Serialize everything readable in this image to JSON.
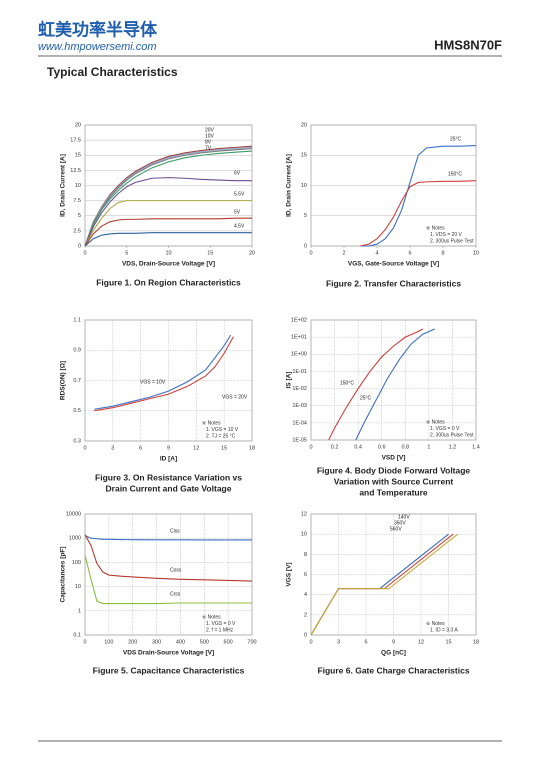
{
  "header": {
    "company": "虹美功率半导体",
    "website": "www.hmpowersemi.com",
    "part_number": "HMS8N70F"
  },
  "section_title": "Typical Characteristics",
  "chart_data": [
    {
      "type": "line",
      "title": [
        "Figure 1. On Region Characteristics"
      ],
      "xlabel": "VDS, Drain-Source Voltage  [V]",
      "ylabel": "ID, Drain Current  [A]",
      "xlim": [
        0,
        20
      ],
      "xticks": [
        0,
        5,
        10,
        15,
        20
      ],
      "ylim": [
        0,
        20
      ],
      "yticks": [
        0,
        2.5,
        5,
        7.5,
        10,
        12.5,
        15,
        17.5,
        20
      ],
      "grid": "y",
      "log_y": false,
      "series": [
        {
          "name": "20V",
          "color": "#a04040",
          "x": [
            0,
            1,
            2,
            3,
            4,
            5,
            6,
            8,
            10,
            12,
            14,
            16,
            18,
            20
          ],
          "values": [
            0,
            4.0,
            6.5,
            8.5,
            10,
            11.3,
            12.3,
            13.8,
            14.8,
            15.4,
            15.8,
            16.1,
            16.3,
            16.5
          ]
        },
        {
          "name": "10V",
          "color": "#8fa7cc",
          "x": [
            0,
            1,
            2,
            3,
            4,
            5,
            6,
            8,
            10,
            12,
            14,
            16,
            18,
            20
          ],
          "values": [
            0,
            3.9,
            6.4,
            8.3,
            9.8,
            11.1,
            12.1,
            13.6,
            14.6,
            15.2,
            15.6,
            15.9,
            16.1,
            16.3
          ]
        },
        {
          "name": "8V",
          "color": "#7a7a7a",
          "x": [
            0,
            1,
            2,
            3,
            4,
            5,
            6,
            8,
            10,
            12,
            14,
            16,
            18,
            20
          ],
          "values": [
            0,
            3.8,
            6.2,
            8.1,
            9.6,
            10.9,
            11.9,
            13.4,
            14.4,
            15.0,
            15.4,
            15.7,
            15.9,
            16.1
          ]
        },
        {
          "name": "7V",
          "color": "#3a9a6a",
          "x": [
            0,
            1,
            2,
            3,
            4,
            5,
            6,
            8,
            10,
            12,
            14,
            16,
            18,
            20
          ],
          "values": [
            0,
            3.6,
            6.0,
            7.8,
            9.2,
            10.4,
            11.4,
            12.9,
            13.9,
            14.6,
            15.0,
            15.3,
            15.5,
            15.7
          ]
        },
        {
          "name": "6V",
          "color": "#6a4c93",
          "x": [
            0,
            1,
            2,
            3,
            4,
            5,
            6,
            8,
            10,
            12,
            14,
            16,
            18,
            20
          ],
          "values": [
            0,
            3.2,
            5.5,
            7.3,
            8.7,
            9.8,
            10.5,
            11.2,
            11.3,
            11.2,
            11.0,
            10.9,
            10.8,
            10.8
          ]
        },
        {
          "name": "5.5V",
          "color": "#a8a842",
          "x": [
            0,
            1,
            2,
            3,
            4,
            5,
            6,
            8,
            10,
            12,
            14,
            16,
            18,
            20
          ],
          "values": [
            0,
            2.6,
            4.6,
            6.2,
            7.2,
            7.5,
            7.5,
            7.5,
            7.5,
            7.5,
            7.5,
            7.5,
            7.5,
            7.5
          ]
        },
        {
          "name": "5V",
          "color": "#b03a2e",
          "x": [
            0,
            1,
            2,
            3,
            4,
            5,
            6,
            8,
            10,
            12,
            14,
            16,
            18,
            20
          ],
          "values": [
            0,
            2.0,
            3.3,
            4.0,
            4.3,
            4.4,
            4.4,
            4.5,
            4.5,
            4.5,
            4.5,
            4.5,
            4.6,
            4.6
          ]
        },
        {
          "name": "4.5V",
          "color": "#2f5f9e",
          "x": [
            0,
            1,
            2,
            3,
            4,
            5,
            6,
            8,
            10,
            12,
            14,
            16,
            18,
            20
          ],
          "values": [
            0,
            1.2,
            1.8,
            2.0,
            2.1,
            2.1,
            2.1,
            2.2,
            2.2,
            2.2,
            2.2,
            2.2,
            2.2,
            2.2
          ]
        }
      ],
      "notes": []
    },
    {
      "type": "line",
      "title": [
        "Figure 2. Transfer Characteristics"
      ],
      "xlabel": "VGS, Gate-Source Voltage [V]",
      "ylabel": "ID, Drain Current [A]",
      "xlim": [
        0,
        10
      ],
      "xticks": [
        0,
        2,
        4,
        6,
        8,
        10
      ],
      "ylim": [
        0,
        20
      ],
      "yticks": [
        0,
        5,
        10,
        15,
        20
      ],
      "grid": "y",
      "log_y": false,
      "series": [
        {
          "name": "25°C",
          "color": "#3a6fc4",
          "x": [
            3,
            3.5,
            4,
            4.5,
            5,
            5.5,
            6,
            6.5,
            7,
            8,
            9,
            10
          ],
          "values": [
            0,
            0,
            0.3,
            1.2,
            3,
            6,
            10.5,
            15,
            16.2,
            16.5,
            16.5,
            16.6
          ]
        },
        {
          "name": "150°C",
          "color": "#d0403a",
          "x": [
            3,
            3.5,
            4,
            4.5,
            5,
            5.5,
            6,
            6.5,
            7,
            8,
            9,
            10
          ],
          "values": [
            0,
            0.3,
            1.2,
            2.7,
            4.8,
            7.5,
            9.8,
            10.5,
            10.6,
            10.7,
            10.7,
            10.8
          ]
        }
      ],
      "notes": [
        "※ Notes",
        "1. VDS = 20 V",
        "2. 300us Pulse Test"
      ]
    },
    {
      "type": "line",
      "title": [
        "Figure 3. On Resistance Variation vs",
        "Drain Current and Gate Voltage"
      ],
      "xlabel": "ID  [A]",
      "ylabel": "RDS(ON) [Ω]",
      "xlim": [
        0,
        18
      ],
      "xticks": [
        0,
        3,
        6,
        9,
        12,
        15,
        18
      ],
      "ylim": [
        0.3,
        1.1
      ],
      "yticks": [
        0.3,
        0.5,
        0.7,
        0.9,
        1.1
      ],
      "grid": "both",
      "log_y": false,
      "series": [
        {
          "name": "VGS = 10V",
          "color": "#3a6fc4",
          "x": [
            1,
            3,
            5,
            7,
            9,
            11,
            13,
            14,
            15,
            15.7
          ],
          "values": [
            0.51,
            0.53,
            0.56,
            0.59,
            0.63,
            0.69,
            0.77,
            0.85,
            0.93,
            1.0
          ]
        },
        {
          "name": "VGS = 20V",
          "color": "#d0403a",
          "x": [
            1,
            3,
            5,
            7,
            9,
            11,
            13,
            14,
            15,
            16
          ],
          "values": [
            0.5,
            0.52,
            0.55,
            0.58,
            0.61,
            0.66,
            0.73,
            0.79,
            0.88,
            0.99
          ]
        }
      ],
      "notes": [
        "※ Notes",
        "1. VGS = 10 V",
        "2. TJ = 25 °C"
      ]
    },
    {
      "type": "line",
      "title": [
        "Figure 4. Body Diode Forward Voltage",
        "Variation with Source Current",
        "and Temperature"
      ],
      "xlabel": "VSD [V]",
      "ylabel": "IS [A]",
      "xlim": [
        0,
        1.4
      ],
      "xticks": [
        0,
        0.2,
        0.4,
        0.6,
        0.8,
        1,
        1.2,
        1.4
      ],
      "ylim": [
        1e-05,
        100
      ],
      "yticks": [
        {
          "value": 1e-05,
          "label": "1E-05"
        },
        {
          "value": 0.0001,
          "label": "1E-04"
        },
        {
          "value": 0.001,
          "label": "1E-03"
        },
        {
          "value": 0.01,
          "label": "1E-02"
        },
        {
          "value": 0.1,
          "label": "1E-01"
        },
        {
          "value": 1,
          "label": "1E+00"
        },
        {
          "value": 10,
          "label": "1E+01"
        },
        {
          "value": 100,
          "label": "1E+02"
        }
      ],
      "grid": "both",
      "log_y": true,
      "series": [
        {
          "name": "150°C",
          "color": "#d0403a",
          "x": [
            0.15,
            0.2,
            0.3,
            0.4,
            0.5,
            0.6,
            0.7,
            0.8,
            0.9,
            0.95
          ],
          "values": [
            1e-05,
            5e-05,
            0.0008,
            0.01,
            0.1,
            0.7,
            3,
            10,
            20,
            30
          ]
        },
        {
          "name": "25°C",
          "color": "#3a6fc4",
          "x": [
            0.38,
            0.45,
            0.55,
            0.65,
            0.75,
            0.85,
            0.95,
            1.05
          ],
          "values": [
            1e-05,
            0.0001,
            0.002,
            0.04,
            0.5,
            4,
            15,
            30
          ]
        }
      ],
      "notes": [
        "※ Notes",
        "1. VGS = 0 V",
        "2. 300us Pulse Test"
      ]
    },
    {
      "type": "line",
      "title": [
        "Figure 5. Capacitance Characteristics"
      ],
      "xlabel": "VDS Drain-Source Voltage [V]",
      "ylabel": "Capacitances [pF]",
      "xlim": [
        0,
        700
      ],
      "xticks": [
        0,
        100,
        200,
        300,
        400,
        500,
        600,
        700
      ],
      "ylim": [
        0.1,
        10000
      ],
      "yticks": [
        0.1,
        1,
        10,
        100,
        1000,
        10000
      ],
      "grid": "both",
      "log_y": true,
      "series": [
        {
          "name": "Ciss",
          "color": "#3a6fc4",
          "x": [
            0,
            25,
            50,
            75,
            100,
            150,
            200,
            300,
            400,
            500,
            600,
            700
          ],
          "values": [
            1300,
            1000,
            950,
            900,
            900,
            880,
            870,
            860,
            860,
            850,
            850,
            850
          ]
        },
        {
          "name": "Coss",
          "color": "#b03a2e",
          "x": [
            0,
            25,
            50,
            75,
            100,
            150,
            200,
            300,
            400,
            500,
            600,
            700
          ],
          "values": [
            1400,
            500,
            90,
            40,
            30,
            27,
            25,
            22,
            20,
            19,
            18,
            17
          ]
        },
        {
          "name": "Crss",
          "color": "#8cbf3f",
          "x": [
            0,
            25,
            50,
            75,
            100,
            150,
            200,
            300,
            400,
            500,
            600,
            700
          ],
          "values": [
            200,
            20,
            2.5,
            2,
            2,
            2,
            2,
            2,
            2.1,
            2.1,
            2.1,
            2.1
          ]
        }
      ],
      "notes": [
        "※ Notes",
        "1. VGS = 0 V",
        "2. f = 1 MHz"
      ]
    },
    {
      "type": "line",
      "title": [
        "Figure 6. Gate Charge Characteristics"
      ],
      "xlabel": "QG [nC]",
      "ylabel": "VGS [V]",
      "xlim": [
        0,
        18
      ],
      "xticks": [
        0,
        3,
        6,
        9,
        12,
        15,
        18
      ],
      "ylim": [
        0,
        12
      ],
      "yticks": [
        0,
        2,
        4,
        6,
        8,
        10,
        12
      ],
      "grid": "both",
      "log_y": false,
      "series": [
        {
          "name": "140V",
          "color": "#3a6fc4",
          "x": [
            0,
            3,
            7.5,
            15
          ],
          "values": [
            0,
            4.6,
            4.6,
            10
          ]
        },
        {
          "name": "350V",
          "color": "#d0403a",
          "x": [
            0,
            3,
            8,
            15.5
          ],
          "values": [
            0,
            4.6,
            4.6,
            10
          ]
        },
        {
          "name": "560V",
          "color": "#c8a832",
          "x": [
            0,
            3,
            8.5,
            16
          ],
          "values": [
            0,
            4.6,
            4.6,
            10
          ]
        }
      ],
      "notes": [
        "※ Notes",
        "1. ID = 3.3 A"
      ]
    }
  ]
}
